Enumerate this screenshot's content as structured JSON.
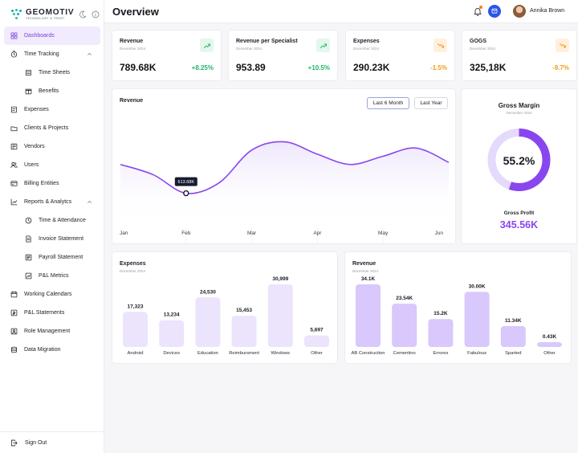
{
  "brand": {
    "name": "GEOMOTIV",
    "tagline": "TECHNOLOGY & TRUST"
  },
  "sidebar": {
    "items": [
      {
        "label": "Dashboards",
        "icon": "dashboard-icon",
        "active": true
      },
      {
        "label": "Time Tracking",
        "icon": "timer-icon",
        "expanded": true
      },
      {
        "label": "Time Sheets",
        "icon": "timesheet-icon",
        "sub": true
      },
      {
        "label": "Benefits",
        "icon": "benefits-icon",
        "sub": true
      },
      {
        "label": "Expenses",
        "icon": "expenses-icon"
      },
      {
        "label": "Clients & Projects",
        "icon": "clients-icon"
      },
      {
        "label": "Vendors",
        "icon": "vendors-icon"
      },
      {
        "label": "Users",
        "icon": "users-icon"
      },
      {
        "label": "Billing Entities",
        "icon": "billing-icon"
      },
      {
        "label": "Reports & Analytcs",
        "icon": "reports-icon",
        "expanded": true
      },
      {
        "label": "Time & Attendance",
        "icon": "clock-icon",
        "sub": true
      },
      {
        "label": "Invoice Statement",
        "icon": "invoice-icon",
        "sub": true
      },
      {
        "label": "Payroll Statement",
        "icon": "payroll-icon",
        "sub": true
      },
      {
        "label": "P&L Metrics",
        "icon": "metrics-icon",
        "sub": true
      },
      {
        "label": "Working Calendars",
        "icon": "calendar-icon"
      },
      {
        "label": "P&L Statements",
        "icon": "statements-icon"
      },
      {
        "label": "Role Management",
        "icon": "role-icon"
      },
      {
        "label": "Data Migration",
        "icon": "migration-icon"
      }
    ],
    "signout": "Sign Out"
  },
  "header": {
    "title": "Overview",
    "user": "Annika Brown"
  },
  "kpis": [
    {
      "title": "Revenue",
      "period": "December 2024",
      "value": "789.68K",
      "change": "+8.25%",
      "trend": "up"
    },
    {
      "title": "Revenue per Specialist",
      "period": "December 2024",
      "value": "953.89",
      "change": "+10.5%",
      "trend": "up"
    },
    {
      "title": "Expenses",
      "period": "December 2024",
      "value": "290.23K",
      "change": "-1.5%",
      "trend": "down"
    },
    {
      "title": "GOGS",
      "period": "December 2024",
      "value": "325,18K",
      "change": "-9.7%",
      "trend": "down"
    }
  ],
  "revenue_chart": {
    "title": "Revenue",
    "ranges": [
      "Last 6 Month",
      "Last Year"
    ],
    "active_range": "Last 6 Month",
    "tooltip": "613.68K"
  },
  "gross_margin": {
    "title": "Gross Margin",
    "period": "December 2024",
    "percent_label": "55.2%",
    "fraction": 0.552,
    "profit_label": "Gross Profit",
    "profit_value": "345.56K"
  },
  "colors": {
    "accent": "#8a46ee",
    "accent_light": "#e5dafb",
    "up": "#24b36b",
    "down": "#f39a1a"
  },
  "chart_data": [
    {
      "type": "line",
      "title": "Revenue",
      "x": [
        "Jan",
        "Feb",
        "Mar",
        "Apr",
        "May",
        "Jun"
      ],
      "curve": [
        [
          0,
          58
        ],
        [
          0.5,
          48
        ],
        [
          1,
          30
        ],
        [
          1.5,
          40
        ],
        [
          2,
          72
        ],
        [
          2.5,
          80
        ],
        [
          3,
          68
        ],
        [
          3.5,
          58
        ],
        [
          4,
          66
        ],
        [
          4.5,
          74
        ],
        [
          5,
          60
        ]
      ],
      "highlight": {
        "x": 1,
        "label": "613.68K"
      },
      "ylim": [
        0,
        100
      ],
      "grid": false
    },
    {
      "type": "bar",
      "title": "Expenses",
      "subtitle": "December 2024",
      "categories": [
        "Android",
        "Devices",
        "Education",
        "Reimbursment",
        "Windows",
        "Other"
      ],
      "labels": [
        "17,323",
        "13,234",
        "24,530",
        "15,453",
        "30,999",
        "5,697"
      ],
      "values": [
        17323,
        13234,
        24530,
        15453,
        30999,
        5697
      ],
      "ylim": [
        0,
        31000
      ]
    },
    {
      "type": "bar",
      "title": "Revenue",
      "subtitle": "December 2024",
      "categories": [
        "AB Construction",
        "Cementino",
        "Errores",
        "Fabulous",
        "Sparted",
        "Other"
      ],
      "labels": [
        "34.1K",
        "23.54K",
        "15.2K",
        "30.00K",
        "11.34K",
        "0.43K"
      ],
      "values": [
        34.1,
        23.54,
        15.2,
        30.0,
        11.34,
        0.43
      ],
      "ylim": [
        0,
        34.1
      ]
    }
  ]
}
